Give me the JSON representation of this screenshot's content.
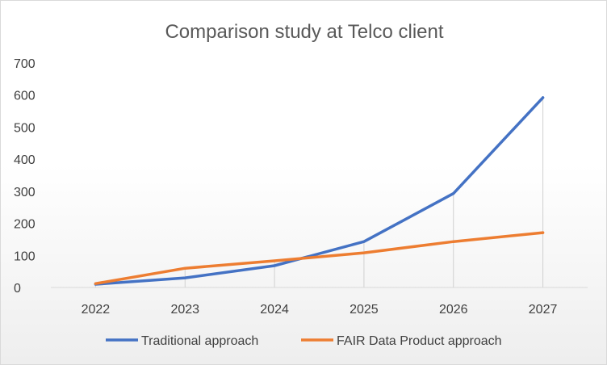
{
  "chart_data": {
    "type": "line",
    "title": "Comparison study at Telco client",
    "xlabel": "",
    "ylabel": "",
    "categories": [
      "2022",
      "2023",
      "2024",
      "2025",
      "2026",
      "2027"
    ],
    "ylim": [
      0,
      700
    ],
    "yticks": [
      0,
      100,
      200,
      300,
      400,
      500,
      600,
      700
    ],
    "grid": false,
    "drop_lines": true,
    "legend_position": "bottom",
    "series": [
      {
        "name": "Traditional approach",
        "color": "#4472C4",
        "values": [
          10,
          30,
          68,
          143,
          293,
          592
        ]
      },
      {
        "name": "FAIR Data Product approach",
        "color": "#ED7D31",
        "values": [
          12,
          60,
          83,
          108,
          143,
          171
        ]
      }
    ]
  }
}
